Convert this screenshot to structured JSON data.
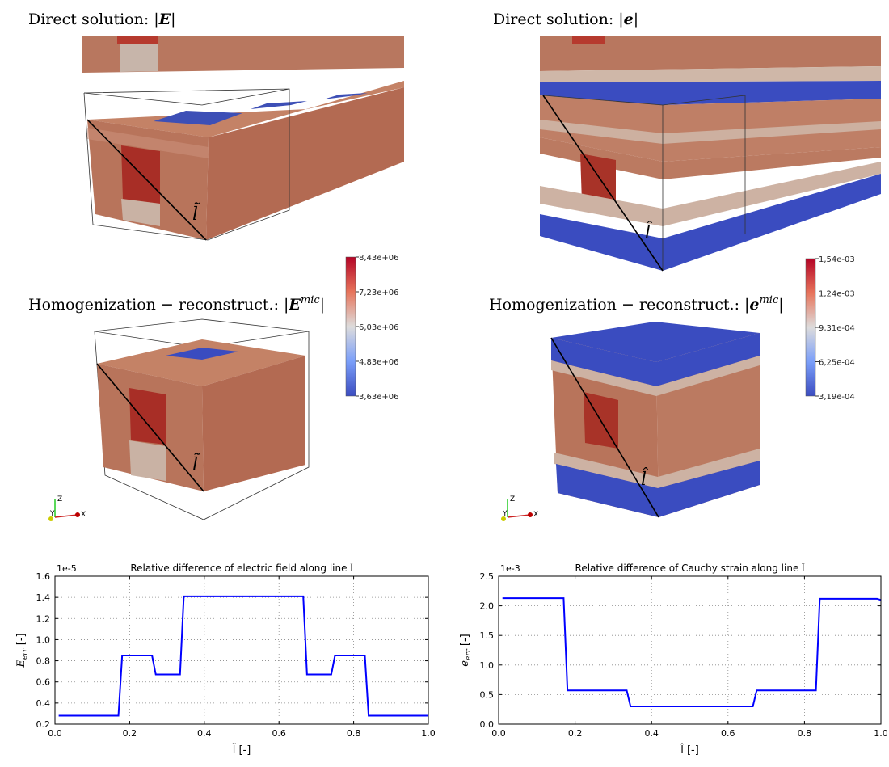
{
  "panels": [
    {
      "prefix": "Direct solution:",
      "open": "|",
      "symbol": "E",
      "close": "|",
      "line_label": "l̃"
    },
    {
      "prefix": "Direct solution:",
      "open": "|",
      "symbol": "e",
      "close": "|",
      "line_label": "l̂"
    },
    {
      "prefix": "Homogenization − reconstruct.:",
      "open": "|",
      "symbol": "E",
      "superscript": "mic",
      "close": "|",
      "line_label": "l̃"
    },
    {
      "prefix": "Homogenization − reconstruct.:",
      "open": "|",
      "symbol": "e",
      "superscript": "mic",
      "close": "|",
      "line_label": "l̂"
    }
  ],
  "colorbars": [
    {
      "ticks": [
        "8,43e+06",
        "7,23e+06",
        "6,03e+06",
        "4,83e+06",
        "3,63e+06"
      ]
    },
    {
      "ticks": [
        "1,54e-03",
        "1,24e-03",
        "9,31e-04",
        "6,25e-04",
        "3,19e-04"
      ]
    }
  ],
  "triads": [
    {
      "labels": [
        "Z",
        "Y",
        "X"
      ]
    },
    {
      "labels": [
        "Z",
        "Y",
        "X"
      ]
    }
  ],
  "chart_data": [
    {
      "type": "line",
      "title": "Relative difference of electric field along line l̃",
      "offset_text": "1e-5",
      "ylabel": {
        "symbol": "E",
        "subscript": "err",
        "unit": "[-]"
      },
      "xlabel": "l̃ [-]",
      "x": [
        0.01,
        0.17,
        0.18,
        0.26,
        0.27,
        0.335,
        0.345,
        0.665,
        0.675,
        0.74,
        0.75,
        0.83,
        0.84,
        1.0
      ],
      "values": [
        0.28,
        0.28,
        0.85,
        0.85,
        0.67,
        0.67,
        1.41,
        1.41,
        0.67,
        0.67,
        0.85,
        0.85,
        0.28,
        0.28
      ],
      "color": "#0000ff",
      "grid": true,
      "xlim": [
        0,
        1
      ],
      "xticks": [
        {
          "value": 0,
          "label": "0.0"
        },
        0.2,
        0.4,
        0.6,
        0.8,
        {
          "value": 1,
          "label": "1.0"
        }
      ],
      "ylim": [
        0.2,
        1.6
      ],
      "yticks": [
        0.2,
        0.4,
        0.6,
        0.8,
        {
          "value": 1,
          "label": "1.0"
        },
        1.2,
        1.4,
        1.6
      ]
    },
    {
      "type": "line",
      "title": "Relative difference of Cauchy strain along line l̂",
      "offset_text": "1e-3",
      "ylabel": {
        "symbol": "e",
        "subscript": "err",
        "unit": "[-]"
      },
      "xlabel": "l̂ [-]",
      "x": [
        0.01,
        0.17,
        0.18,
        0.335,
        0.345,
        0.665,
        0.675,
        0.83,
        0.84,
        0.99,
        1.0
      ],
      "values": [
        2.13,
        2.13,
        0.57,
        0.57,
        0.3,
        0.3,
        0.57,
        0.57,
        2.12,
        2.12,
        2.1
      ],
      "color": "#0000ff",
      "grid": true,
      "xlim": [
        0,
        1
      ],
      "xticks": [
        {
          "value": 0,
          "label": "0.0"
        },
        0.2,
        0.4,
        0.6,
        0.8,
        {
          "value": 1,
          "label": "1.0"
        }
      ],
      "ylim": [
        0,
        2.5
      ],
      "yticks": [
        {
          "value": 0,
          "label": "0.0"
        },
        0.5,
        {
          "value": 1,
          "label": "1.0"
        },
        1.5,
        {
          "value": 2,
          "label": "2.0"
        },
        2.5
      ]
    }
  ]
}
